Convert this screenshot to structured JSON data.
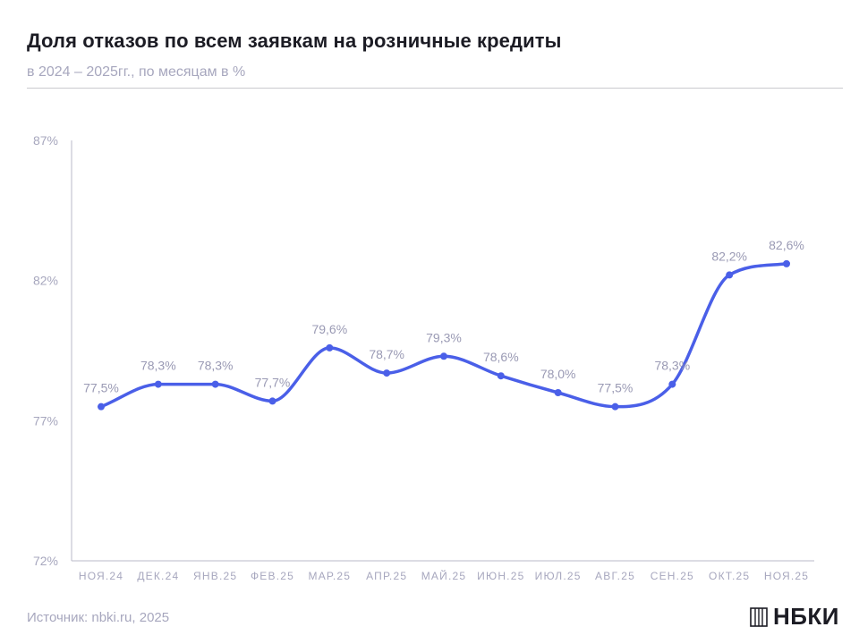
{
  "header": {
    "title": "Доля отказов по всем заявкам на розничные кредиты",
    "subtitle": "в 2024 – 2025гг., по месяцам в %"
  },
  "footer": {
    "source": "Источник: nbki.ru, 2025",
    "logo_text": "НБКИ"
  },
  "colors": {
    "line": "#4a5fe8",
    "axis_text": "#a7a7be",
    "data_label": "#9a9ab4",
    "axis_line": "#b8b8c8"
  },
  "chart_data": {
    "type": "line",
    "title": "Доля отказов по всем заявкам на розничные кредиты",
    "subtitle": "в 2024 – 2025гг., по месяцам в %",
    "xlabel": "",
    "ylabel": "",
    "categories": [
      "НОЯ.24",
      "ДЕК.24",
      "ЯНВ.25",
      "ФЕВ.25",
      "МАР.25",
      "АПР.25",
      "МАЙ.25",
      "ИЮН.25",
      "ИЮЛ.25",
      "АВГ.25",
      "СЕН.25",
      "ОКТ.25",
      "НОЯ.25"
    ],
    "values": [
      77.5,
      78.3,
      78.3,
      77.7,
      79.6,
      78.7,
      79.3,
      78.6,
      78.0,
      77.5,
      78.3,
      82.2,
      82.6
    ],
    "data_labels": [
      "77,5%",
      "78,3%",
      "78,3%",
      "77,7%",
      "79,6%",
      "78,7%",
      "79,3%",
      "78,6%",
      "78,0%",
      "77,5%",
      "78,3%",
      "82,2%",
      "82,6%"
    ],
    "ylim": [
      72,
      87
    ],
    "yticks": [
      72,
      77,
      82,
      87
    ],
    "ytick_labels": [
      "72%",
      "77%",
      "82%",
      "87%"
    ],
    "grid": false,
    "legend": "none"
  }
}
